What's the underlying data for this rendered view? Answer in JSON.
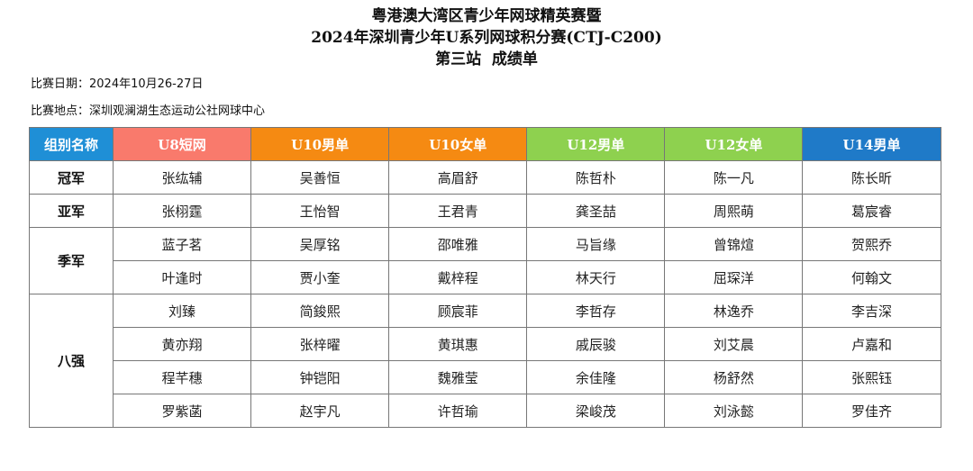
{
  "title": {
    "line1": "粤港澳大湾区青少年网球精英赛暨",
    "line2": "2024年深圳青少年U系列网球积分赛(CTJ-C200)",
    "line3": "第三站  成绩单"
  },
  "meta": {
    "date": "比赛日期：2024年10月26-27日",
    "venue": "比赛地点：深圳观澜湖生态运动公社网球中心"
  },
  "table": {
    "headers": [
      {
        "label": "组别名称",
        "color": "#1f8fd6"
      },
      {
        "label": "U8短网",
        "color": "#f97a6c"
      },
      {
        "label": "U10男单",
        "color": "#f58a12"
      },
      {
        "label": "U10女单",
        "color": "#f58a12"
      },
      {
        "label": "U12男单",
        "color": "#8ed14f"
      },
      {
        "label": "U12女单",
        "color": "#8ed14f"
      },
      {
        "label": "U14男单",
        "color": "#1f7ac8"
      }
    ],
    "rows": [
      {
        "rank": "冠军",
        "rowspan": 1,
        "cells": [
          "张纮辅",
          "吴善恒",
          "高眉舒",
          "陈哲朴",
          "陈一凡",
          "陈长昕"
        ]
      },
      {
        "rank": "亚军",
        "rowspan": 1,
        "cells": [
          "张栩霆",
          "王怡智",
          "王君青",
          "龚圣喆",
          "周熙萌",
          "葛宸睿"
        ]
      },
      {
        "rank": "季军",
        "rowspan": 2,
        "cells": [
          "蓝子茗",
          "吴厚铭",
          "邵唯雅",
          "马旨缘",
          "曾锦煊",
          "贺熙乔"
        ]
      },
      {
        "cells": [
          "叶逢时",
          "贾小奎",
          "戴梓程",
          "林天行",
          "屈琛洋",
          "何翰文"
        ]
      },
      {
        "rank": "八强",
        "rowspan": 4,
        "cells": [
          "刘臻",
          "简鋑熙",
          "顾宸菲",
          "李哲存",
          "林逸乔",
          "李吉深"
        ]
      },
      {
        "cells": [
          "黄亦翔",
          "张梓曜",
          "黄琪惠",
          "戚辰骏",
          "刘艾晨",
          "卢嘉和"
        ]
      },
      {
        "cells": [
          "程芊穗",
          "钟铠阳",
          "魏雅莹",
          "余佳隆",
          "杨舒然",
          "张熙钰"
        ]
      },
      {
        "cells": [
          "罗紫菡",
          "赵宇凡",
          "许哲瑜",
          "梁峻茂",
          "刘泳懿",
          "罗佳齐"
        ]
      }
    ]
  }
}
